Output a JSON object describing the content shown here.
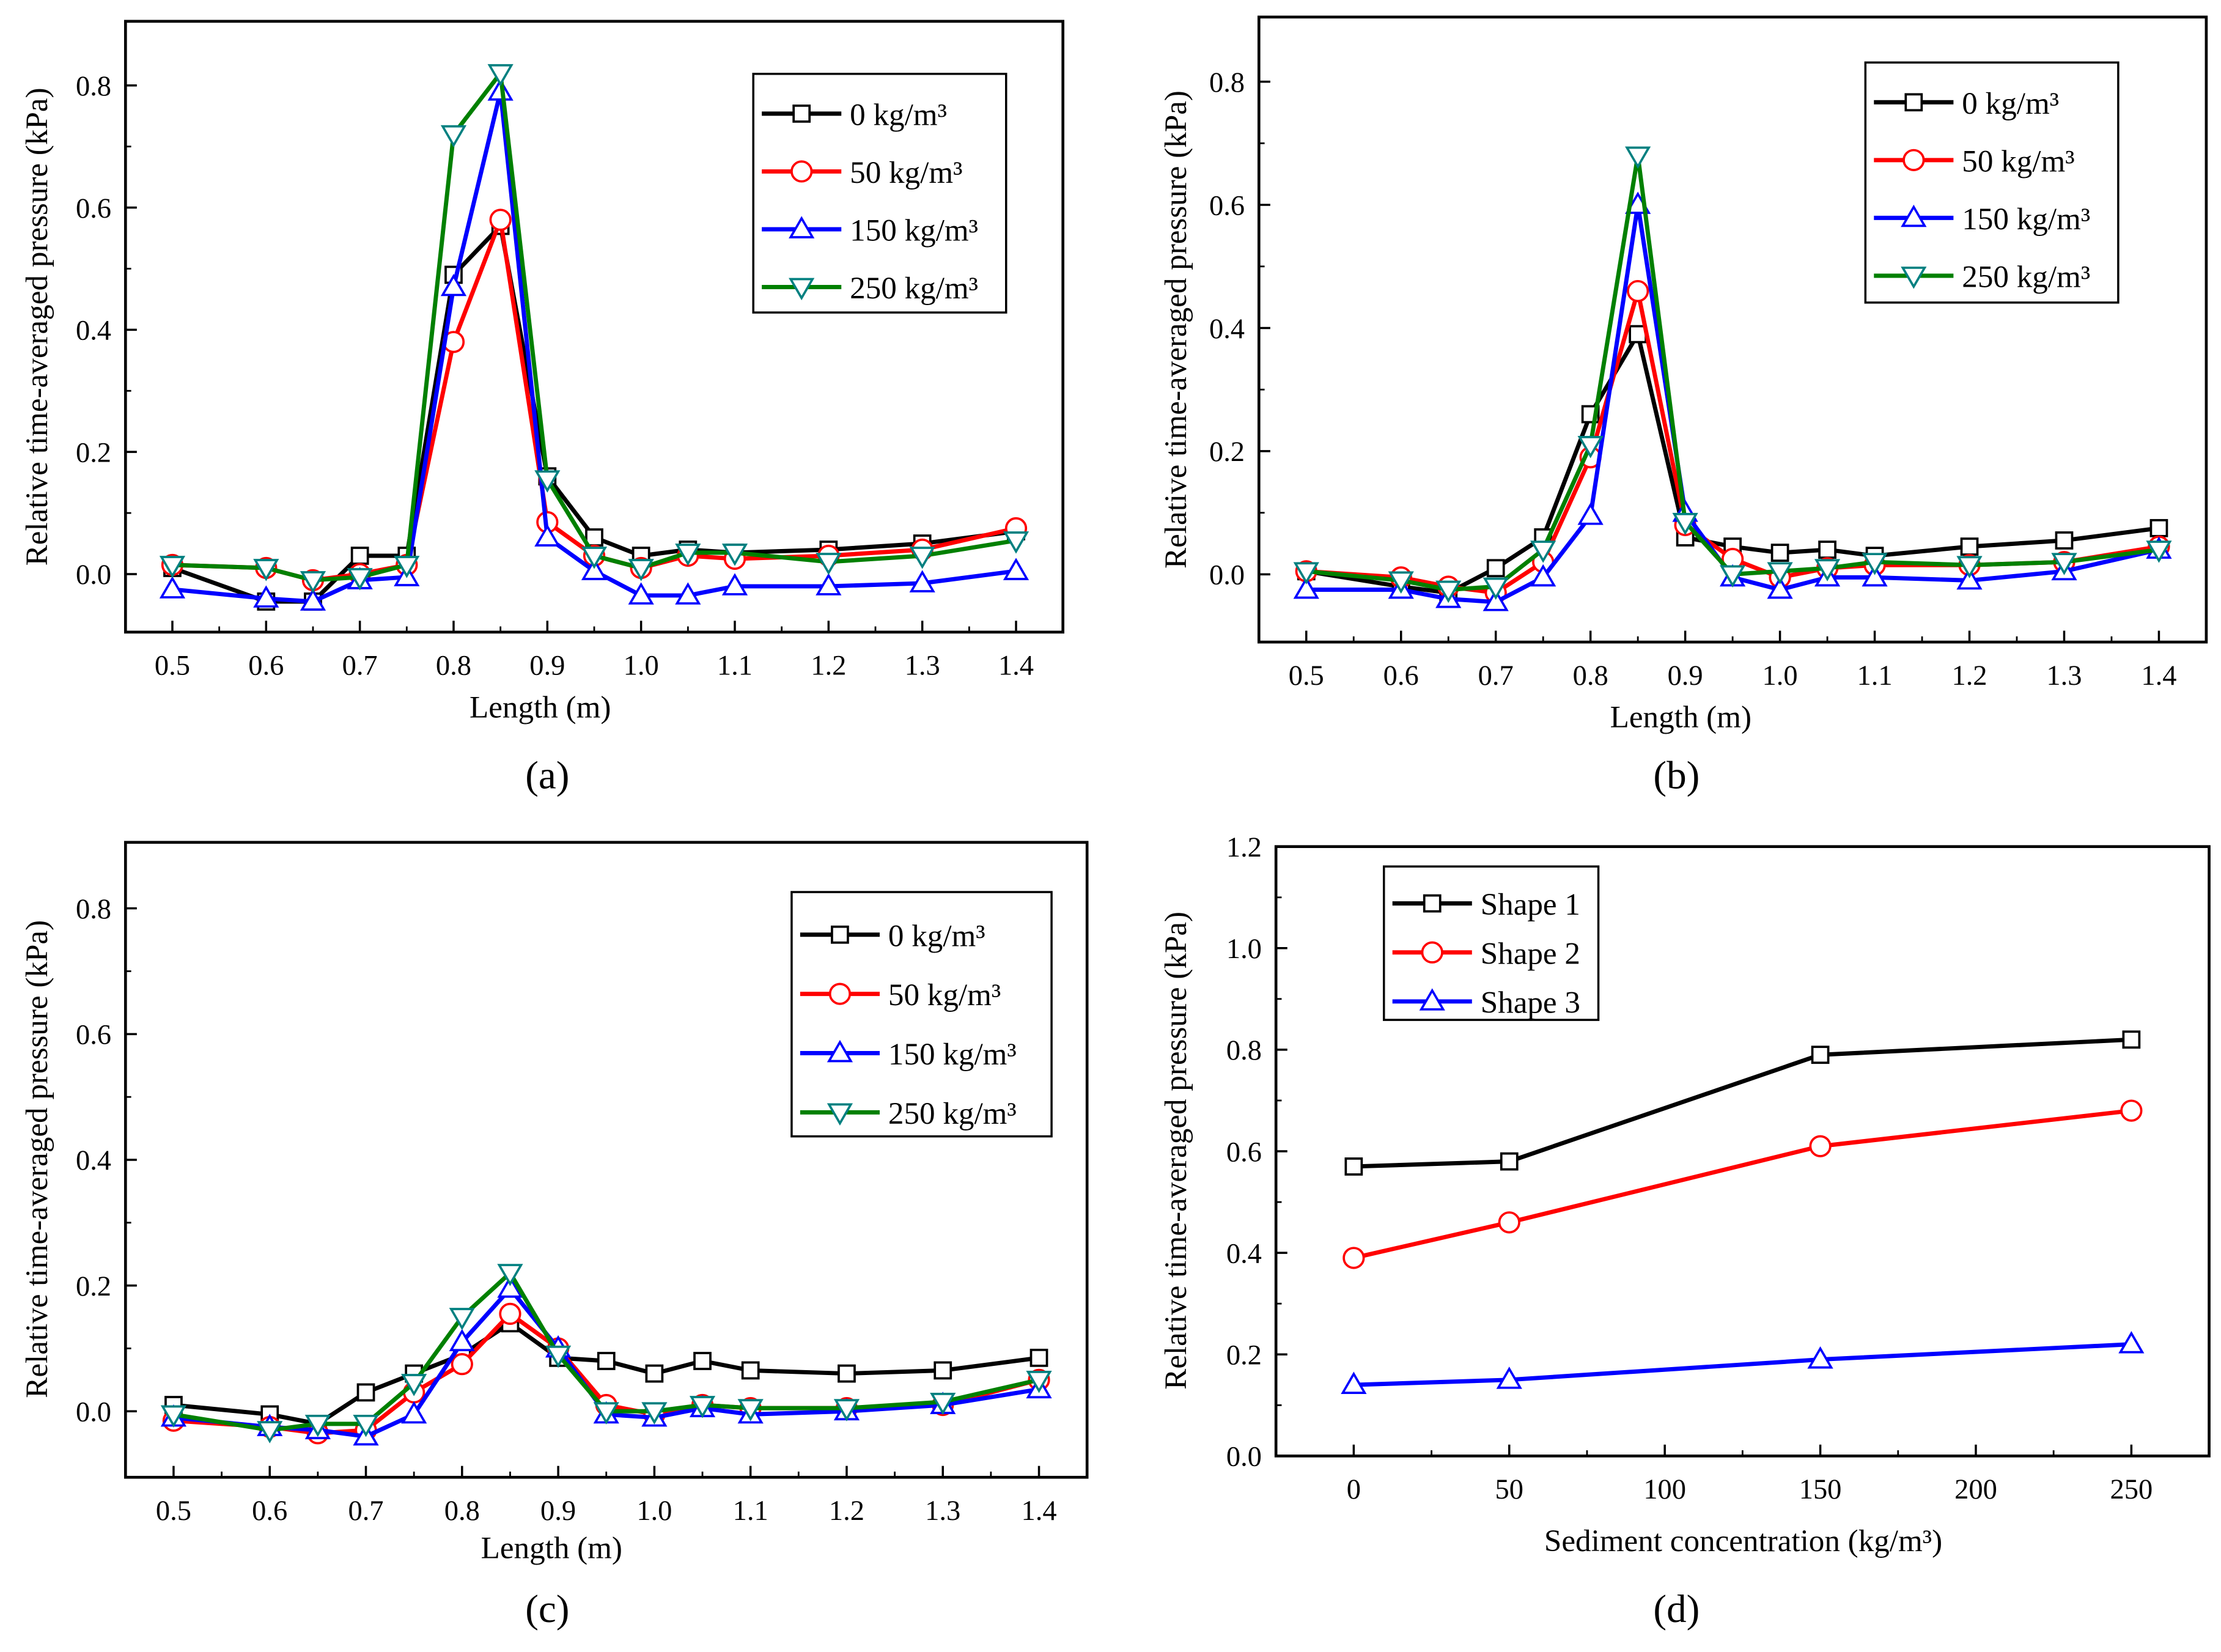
{
  "chart_data": [
    {
      "id": "a",
      "caption": "(a)",
      "type": "line",
      "xlabel": "Length (m)",
      "ylabel": "Relative time-averaged pressure (kPa)",
      "xlim": [
        0.45,
        1.45
      ],
      "ylim": [
        -0.095,
        0.905
      ],
      "xticks": [
        0.5,
        0.6,
        0.7,
        0.8,
        0.9,
        1.0,
        1.1,
        1.2,
        1.3,
        1.4
      ],
      "yticks": [
        0.0,
        0.2,
        0.4,
        0.6,
        0.8
      ],
      "x": [
        0.5,
        0.6,
        0.65,
        0.7,
        0.75,
        0.8,
        0.85,
        0.9,
        0.95,
        1.0,
        1.05,
        1.1,
        1.2,
        1.3,
        1.4
      ],
      "series": [
        {
          "name": "0 kg/m³",
          "color": "#000000",
          "marker": "square",
          "values": [
            0.01,
            -0.045,
            -0.045,
            0.03,
            0.03,
            0.49,
            0.57,
            0.16,
            0.06,
            0.03,
            0.04,
            0.035,
            0.04,
            0.05,
            0.07
          ]
        },
        {
          "name": "50 kg/m³",
          "color": "#ff0000",
          "marker": "circle",
          "values": [
            0.015,
            0.01,
            -0.01,
            0.0,
            0.015,
            0.38,
            0.58,
            0.085,
            0.03,
            0.01,
            0.03,
            0.025,
            0.03,
            0.04,
            0.075
          ]
        },
        {
          "name": "150 kg/m³",
          "color": "#0000ff",
          "marker": "triangle-up",
          "values": [
            -0.025,
            -0.04,
            -0.045,
            -0.01,
            -0.005,
            0.47,
            0.79,
            0.06,
            0.005,
            -0.035,
            -0.035,
            -0.02,
            -0.02,
            -0.015,
            0.005
          ]
        },
        {
          "name": "250 kg/m³",
          "color": "#008000",
          "marker_color": "#008080",
          "marker": "triangle-down",
          "values": [
            0.015,
            0.01,
            -0.01,
            -0.005,
            0.015,
            0.72,
            0.82,
            0.155,
            0.03,
            0.01,
            0.035,
            0.035,
            0.02,
            0.03,
            0.055
          ]
        }
      ],
      "legend": "top-right"
    },
    {
      "id": "b",
      "caption": "(b)",
      "type": "line",
      "xlabel": "Length (m)",
      "ylabel": "Relative time-averaged pressure (kPa)",
      "xlim": [
        0.45,
        1.45
      ],
      "ylim": [
        -0.11,
        0.905
      ],
      "xticks": [
        0.5,
        0.6,
        0.7,
        0.8,
        0.9,
        1.0,
        1.1,
        1.2,
        1.3,
        1.4
      ],
      "yticks": [
        0.0,
        0.2,
        0.4,
        0.6,
        0.8
      ],
      "x": [
        0.5,
        0.6,
        0.65,
        0.7,
        0.75,
        0.8,
        0.85,
        0.9,
        0.95,
        1.0,
        1.05,
        1.1,
        1.2,
        1.3,
        1.4
      ],
      "series": [
        {
          "name": "0 kg/m³",
          "color": "#000000",
          "marker": "square",
          "values": [
            0.005,
            -0.02,
            -0.03,
            0.01,
            0.06,
            0.26,
            0.39,
            0.06,
            0.045,
            0.035,
            0.04,
            0.03,
            0.045,
            0.055,
            0.075
          ]
        },
        {
          "name": "50 kg/m³",
          "color": "#ff0000",
          "marker": "circle",
          "values": [
            0.005,
            -0.005,
            -0.02,
            -0.03,
            0.02,
            0.19,
            0.46,
            0.08,
            0.025,
            -0.005,
            0.01,
            0.015,
            0.015,
            0.02,
            0.045
          ]
        },
        {
          "name": "150 kg/m³",
          "color": "#0000ff",
          "marker": "triangle-up",
          "values": [
            -0.025,
            -0.025,
            -0.04,
            -0.045,
            -0.005,
            0.095,
            0.6,
            0.1,
            -0.005,
            -0.025,
            -0.005,
            -0.005,
            -0.01,
            0.005,
            0.04
          ]
        },
        {
          "name": "250 kg/m³",
          "color": "#008000",
          "marker_color": "#008080",
          "marker": "triangle-down",
          "values": [
            0.005,
            -0.01,
            -0.025,
            -0.02,
            0.04,
            0.21,
            0.68,
            0.085,
            0.0,
            0.005,
            0.01,
            0.02,
            0.015,
            0.02,
            0.04
          ]
        }
      ],
      "legend": "top-right"
    },
    {
      "id": "c",
      "caption": "(c)",
      "type": "line",
      "xlabel": "Length (m)",
      "ylabel": "Relative time-averaged pressure (kPa)",
      "xlim": [
        0.45,
        1.45
      ],
      "ylim": [
        -0.105,
        0.905
      ],
      "xticks": [
        0.5,
        0.6,
        0.7,
        0.8,
        0.9,
        1.0,
        1.1,
        1.2,
        1.3,
        1.4
      ],
      "yticks": [
        0.0,
        0.2,
        0.4,
        0.6,
        0.8
      ],
      "x": [
        0.5,
        0.6,
        0.65,
        0.7,
        0.75,
        0.8,
        0.85,
        0.9,
        0.95,
        1.0,
        1.05,
        1.1,
        1.2,
        1.3,
        1.4
      ],
      "series": [
        {
          "name": "0 kg/m³",
          "color": "#000000",
          "marker": "square",
          "values": [
            0.01,
            -0.005,
            -0.02,
            0.03,
            0.06,
            0.09,
            0.14,
            0.085,
            0.08,
            0.06,
            0.08,
            0.065,
            0.06,
            0.065,
            0.085
          ]
        },
        {
          "name": "50 kg/m³",
          "color": "#ff0000",
          "marker": "circle",
          "values": [
            -0.015,
            -0.025,
            -0.035,
            -0.03,
            0.03,
            0.075,
            0.155,
            0.1,
            0.01,
            -0.005,
            0.01,
            0.005,
            0.005,
            0.01,
            0.05
          ]
        },
        {
          "name": "150 kg/m³",
          "color": "#0000ff",
          "marker": "triangle-up",
          "values": [
            -0.01,
            -0.025,
            -0.03,
            -0.04,
            -0.005,
            0.11,
            0.195,
            0.1,
            -0.005,
            -0.01,
            0.005,
            -0.005,
            0.0,
            0.01,
            0.035
          ]
        },
        {
          "name": "250 kg/m³",
          "color": "#008000",
          "marker_color": "#008080",
          "marker": "triangle-down",
          "values": [
            -0.005,
            -0.03,
            -0.02,
            -0.02,
            0.045,
            0.15,
            0.22,
            0.09,
            0.0,
            0.0,
            0.01,
            0.005,
            0.005,
            0.015,
            0.05
          ]
        }
      ],
      "legend": "top-right"
    },
    {
      "id": "d",
      "caption": "(d)",
      "type": "line",
      "xlabel": "Sediment concentration (kg/m³)",
      "ylabel": "Relative time-averaged pressure (kPa)",
      "xlim": [
        -25,
        275
      ],
      "ylim": [
        0.0,
        1.2
      ],
      "xticks": [
        0,
        50,
        100,
        150,
        200,
        250
      ],
      "yticks": [
        0.0,
        0.2,
        0.4,
        0.6,
        0.8,
        1.0,
        1.2
      ],
      "x": [
        0,
        50,
        150,
        250
      ],
      "series": [
        {
          "name": "Shape 1",
          "color": "#000000",
          "marker": "square",
          "values": [
            0.57,
            0.58,
            0.79,
            0.82
          ]
        },
        {
          "name": "Shape 2",
          "color": "#ff0000",
          "marker": "circle",
          "values": [
            0.39,
            0.46,
            0.61,
            0.68
          ]
        },
        {
          "name": "Shape 3",
          "color": "#0000ff",
          "marker": "triangle-up",
          "values": [
            0.14,
            0.15,
            0.19,
            0.22
          ]
        }
      ],
      "legend": "top-left"
    }
  ]
}
